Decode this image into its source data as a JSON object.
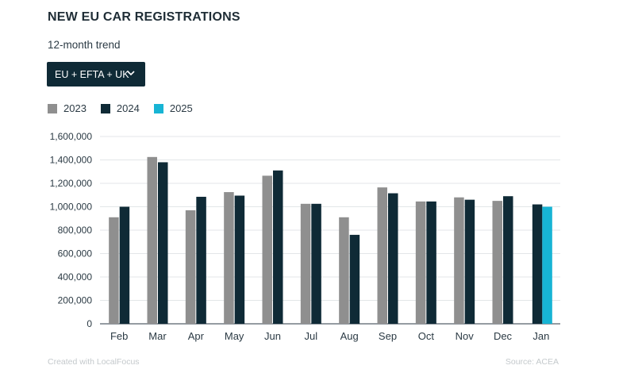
{
  "header": {
    "title": "NEW EU CAR REGISTRATIONS",
    "subtitle": "12-month trend"
  },
  "region_select": {
    "selected": "EU + EFTA + UK"
  },
  "footer": {
    "credit": "Created with LocalFocus",
    "source": "Source:  ACEA"
  },
  "chart_data": {
    "type": "bar",
    "categories": [
      "Feb",
      "Mar",
      "Apr",
      "May",
      "Jun",
      "Jul",
      "Aug",
      "Sep",
      "Oct",
      "Nov",
      "Dec",
      "Jan"
    ],
    "series": [
      {
        "name": "2023",
        "color": "#8f8f8f",
        "values": [
          910000,
          1425000,
          970000,
          1125000,
          1265000,
          1025000,
          910000,
          1165000,
          1045000,
          1080000,
          1050000,
          null
        ]
      },
      {
        "name": "2024",
        "color": "#0f2a36",
        "values": [
          1000000,
          1380000,
          1085000,
          1095000,
          1310000,
          1025000,
          760000,
          1115000,
          1045000,
          1060000,
          1090000,
          1020000
        ]
      },
      {
        "name": "2025",
        "color": "#17b4d4",
        "values": [
          null,
          null,
          null,
          null,
          null,
          null,
          null,
          null,
          null,
          null,
          null,
          1000000
        ]
      }
    ],
    "ylim": [
      0,
      1600000
    ],
    "yticks": [
      0,
      200000,
      400000,
      600000,
      800000,
      1000000,
      1200000,
      1400000,
      1600000
    ],
    "ytick_labels": [
      "0",
      "200,000",
      "400,000",
      "600,000",
      "800,000",
      "1,000,000",
      "1,200,000",
      "1,400,000",
      "1,600,000"
    ],
    "grid": true,
    "legend_position": "top-left"
  }
}
